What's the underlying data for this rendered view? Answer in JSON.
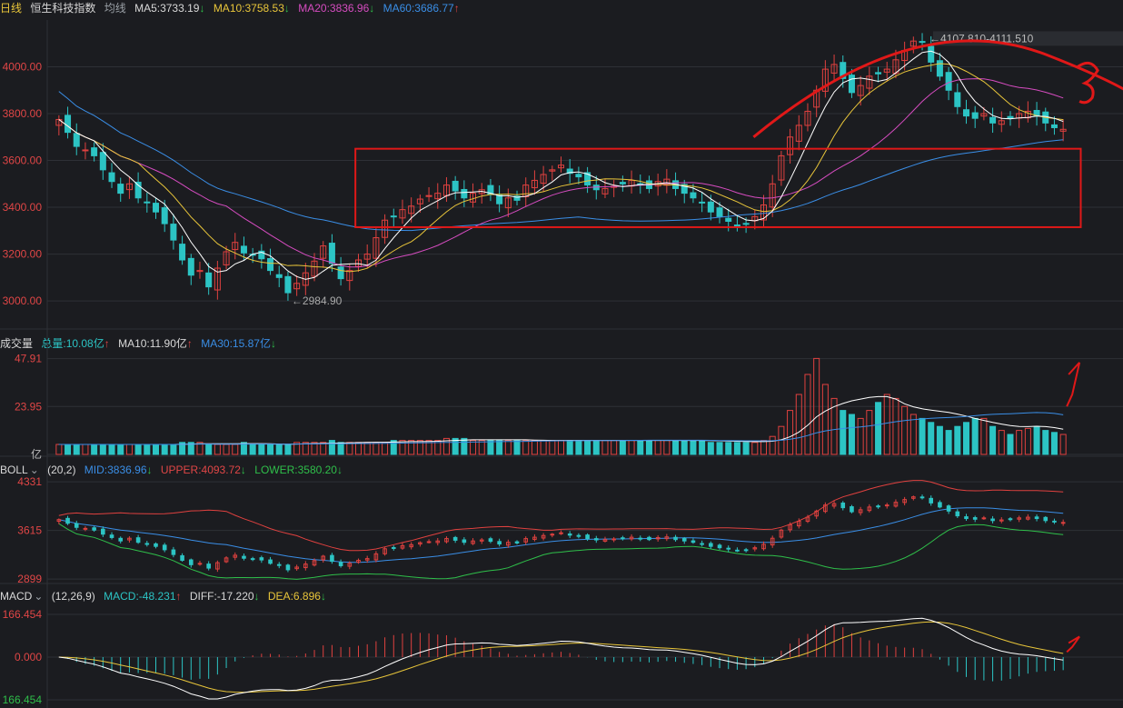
{
  "colors": {
    "bg": "#1b1c20",
    "up": "#e0413f",
    "down": "#2cc4c4",
    "ma5": "#ffffff",
    "ma10": "#e8c53a",
    "ma20": "#d64cc0",
    "ma60": "#3a8ee6",
    "grid": "#2e3036",
    "axis": "#e04646",
    "annot": "#e01818",
    "boll_mid": "#3a8ee6",
    "boll_up": "#e0413f",
    "boll_low": "#2fbf4a",
    "macd_diff": "#ffffff",
    "macd_dea": "#e8c53a"
  },
  "main_header": {
    "period": "日线",
    "name": "恒生科技指数",
    "type": "均线",
    "ma5": "MA5:3733.19",
    "ma10": "MA10:3758.53",
    "ma20": "MA20:3836.96",
    "ma60": "MA60:3686.77"
  },
  "vol_header": {
    "title": "成交量",
    "total": "总量:10.08亿",
    "ma10": "MA10:11.90亿",
    "ma30": "MA30:15.87亿"
  },
  "boll_header": {
    "title": "BOLL",
    "params": "(20,2)",
    "mid": "MID:3836.96",
    "upper": "UPPER:4093.72",
    "lower": "LOWER:3580.20"
  },
  "macd_header": {
    "title": "MACD",
    "params": "(12,26,9)",
    "macd": "MACD:-48.231",
    "diff": "DIFF:-17.220",
    "dea": "DEA:6.896"
  },
  "chart_data": [
    {
      "type": "candlestick",
      "title": "恒生科技指数 日线",
      "y_ticks": [
        "4000.00",
        "3800.00",
        "3600.00",
        "3400.00",
        "3200.00",
        "3000.00"
      ],
      "ylim": [
        2880,
        4200
      ],
      "annotations": {
        "low_label": "2984.90",
        "high_label": "4107.810-4111.510"
      },
      "close": [
        3775,
        3720,
        3660,
        3645,
        3620,
        3560,
        3510,
        3460,
        3500,
        3440,
        3420,
        3380,
        3330,
        3260,
        3175,
        3110,
        3130,
        3060,
        3140,
        3210,
        3250,
        3205,
        3195,
        3180,
        3130,
        3100,
        3035,
        3075,
        3120,
        3170,
        3235,
        3160,
        3095,
        3130,
        3175,
        3200,
        3270,
        3345,
        3360,
        3390,
        3405,
        3435,
        3450,
        3460,
        3495,
        3470,
        3440,
        3460,
        3475,
        3455,
        3415,
        3440,
        3430,
        3495,
        3515,
        3540,
        3560,
        3580,
        3545,
        3530,
        3495,
        3475,
        3480,
        3490,
        3500,
        3515,
        3500,
        3480,
        3510,
        3520,
        3480,
        3460,
        3440,
        3420,
        3380,
        3360,
        3340,
        3320,
        3330,
        3360,
        3410,
        3500,
        3620,
        3700,
        3750,
        3810,
        3900,
        3990,
        4010,
        3950,
        3890,
        3920,
        3960,
        3970,
        3990,
        4030,
        4070,
        4110,
        4105,
        4020,
        3960,
        3900,
        3830,
        3790,
        3780,
        3800,
        3760,
        3770,
        3780,
        3800,
        3810,
        3790,
        3760,
        3740,
        3733
      ],
      "boll_y_ticks": [
        "4331",
        "3615",
        "2899"
      ],
      "boll_ylim": [
        2860,
        4360
      ],
      "volume_y_ticks": [
        "47.91",
        "23.95",
        "亿"
      ],
      "volume_ylim": [
        0,
        50
      ],
      "volume": [
        5,
        5,
        5,
        5,
        5,
        5,
        5,
        5,
        5,
        5,
        5,
        5,
        5,
        5,
        6,
        6,
        6,
        5,
        5,
        5,
        5,
        6,
        5,
        5,
        5,
        5,
        5,
        6,
        6,
        6,
        6,
        7,
        6,
        6,
        6,
        6,
        6,
        6,
        7,
        7,
        7,
        7,
        7,
        7,
        8,
        8,
        8,
        7,
        7,
        7,
        7,
        7,
        7,
        7,
        7,
        7,
        7,
        7,
        7,
        7,
        7,
        7,
        7,
        7,
        7,
        7,
        7,
        7,
        7,
        7,
        7,
        7,
        7,
        7,
        6,
        6,
        6,
        6,
        6,
        6,
        7,
        9,
        14,
        22,
        30,
        40,
        48,
        35,
        28,
        22,
        20,
        18,
        22,
        26,
        30,
        28,
        24,
        20,
        18,
        16,
        14,
        12,
        14,
        16,
        18,
        18,
        14,
        12,
        10,
        12,
        13,
        14,
        12,
        11,
        10
      ],
      "macd_y_ticks": [
        "166.454",
        "0.000",
        "166.454"
      ],
      "macd_ylim": [
        -166.454,
        166.454
      ]
    }
  ]
}
